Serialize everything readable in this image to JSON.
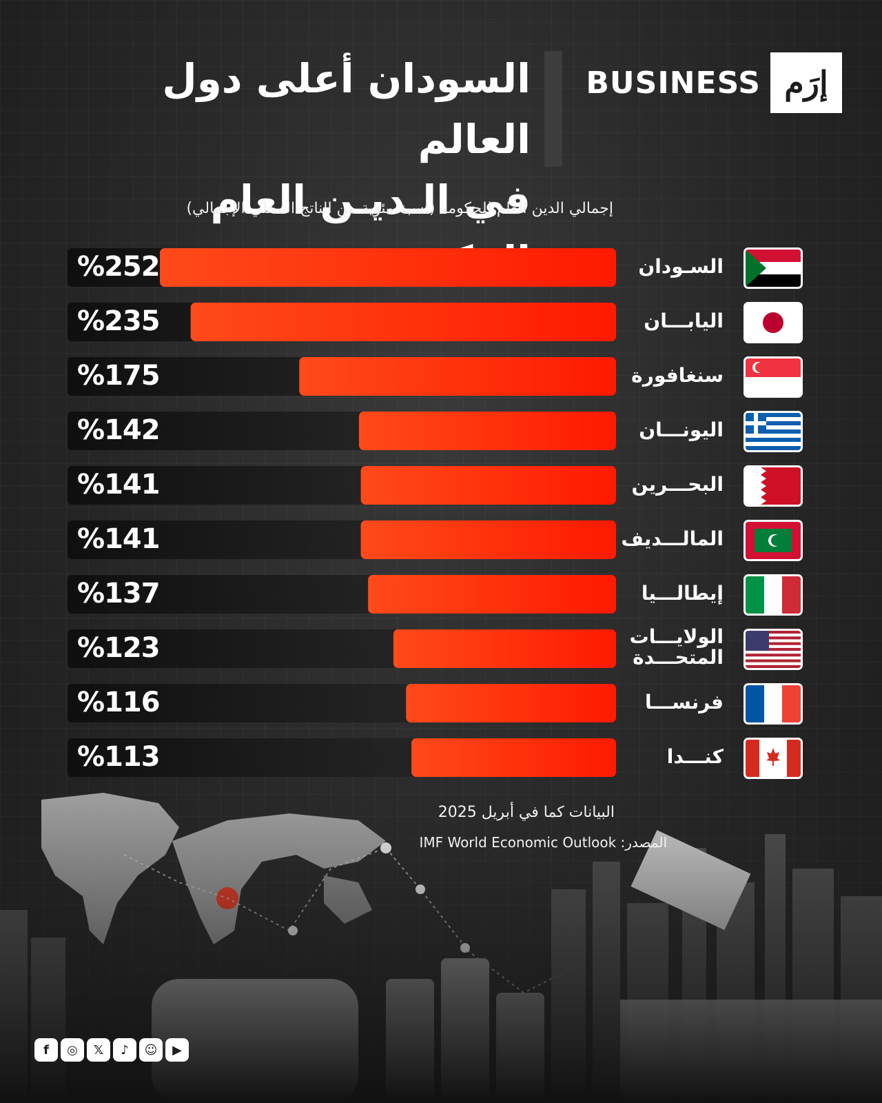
{
  "header": {
    "title_line1": "السودان أعلى دول العالم",
    "title_line2": "في الـديـن العام الحكومي",
    "logo_text": "BUSINESS",
    "logo_mark": "إرَم"
  },
  "chart_data": {
    "type": "bar",
    "orientation": "horizontal",
    "title": "إجمالي الدين العام للحكومة (نسبة مئوية من الناتج المحلي الإجمالي)",
    "categories": [
      "السـودان",
      "اليابـــان",
      "سنغافورة",
      "اليونـــان",
      "البحـــرين",
      "المالـــديف",
      "إيطالـــيا",
      "الولايـــات المتحـــدة",
      "فرنســـا",
      "كنـــدا"
    ],
    "values": [
      252,
      235,
      175,
      142,
      141,
      141,
      137,
      123,
      116,
      113
    ],
    "value_labels": [
      "%252",
      "%235",
      "%175",
      "%142",
      "%141",
      "%141",
      "%137",
      "%123",
      "%116",
      "%113"
    ],
    "flags": [
      "sudan-flag",
      "japan-flag",
      "singapore-flag",
      "greece-flag",
      "bahrain-flag",
      "maldives-flag",
      "italy-flag",
      "usa-flag",
      "france-flag",
      "canada-flag"
    ],
    "xlim": [
      0,
      252
    ],
    "bar_color": "#ff1a00",
    "grid": false
  },
  "footer": {
    "date_note": "البيانات كما في أبريل 2025",
    "source": "المصدر: IMF World Economic Outlook"
  },
  "social_icons": [
    "facebook-icon",
    "instagram-icon",
    "x-icon",
    "tiktok-icon",
    "snapchat-icon",
    "youtube-icon"
  ],
  "colors": {
    "background": "#2b2b2b",
    "accent": "#ff1a00",
    "track": "#141414"
  }
}
